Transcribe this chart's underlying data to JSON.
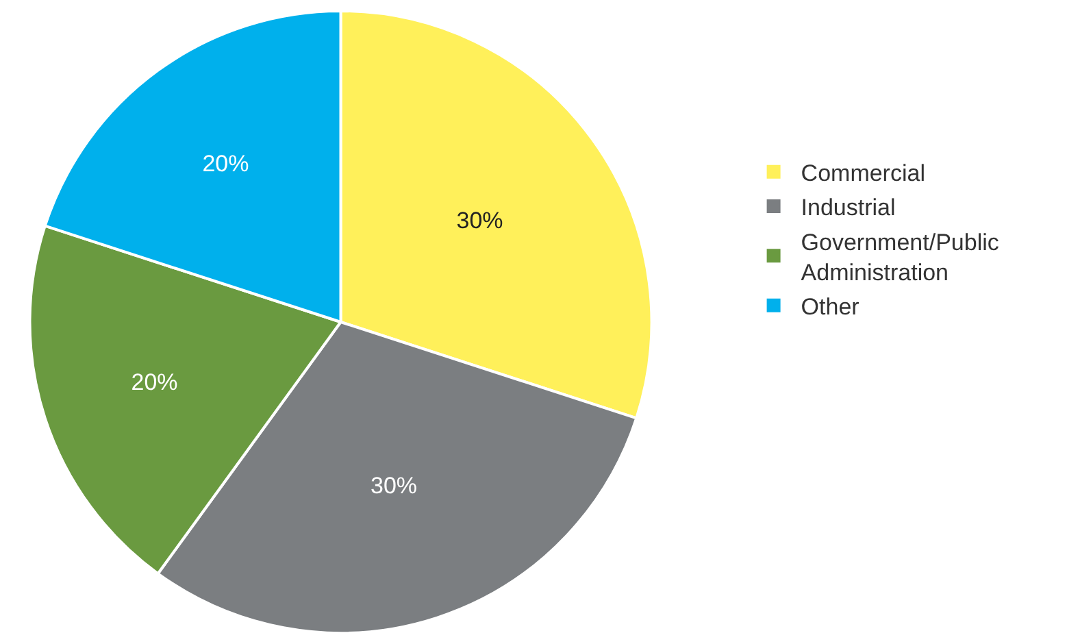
{
  "chart_data": {
    "type": "pie",
    "categories": [
      "Commercial",
      "Industrial",
      "Government/Public Administration",
      "Other"
    ],
    "values": [
      30,
      30,
      20,
      20
    ],
    "colors": [
      "#fff05a",
      "#7b7e81",
      "#6a9a40",
      "#00b0ec"
    ],
    "value_labels": [
      "30%",
      "30%",
      "20%",
      "20%"
    ],
    "legend": "right"
  }
}
